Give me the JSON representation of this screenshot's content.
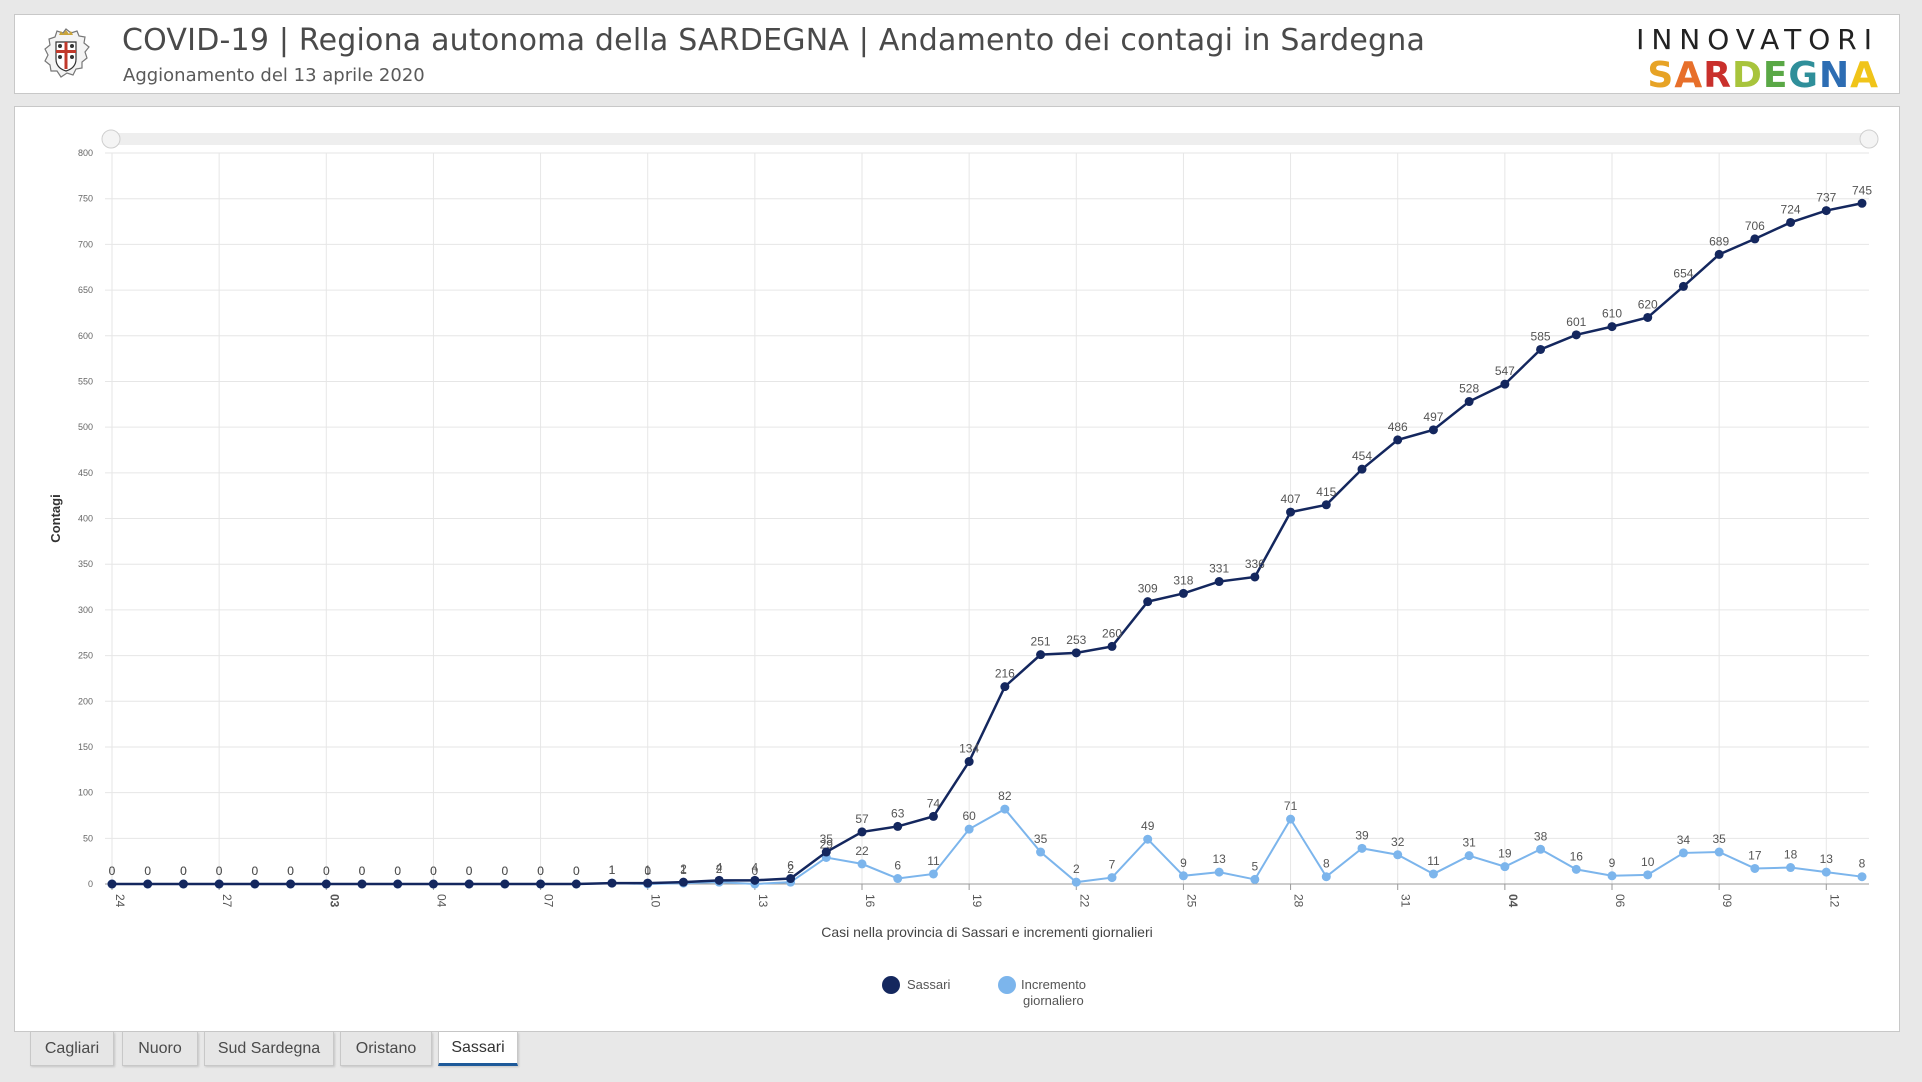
{
  "header": {
    "title": "COVID-19 | Regiona autonoma della SARDEGNA | Andamento dei contagi in Sardegna",
    "subtitle": "Aggionamento del 13 aprile 2020",
    "logo_top": "INNOVATORI",
    "logo_bottom_letters": [
      "S",
      "A",
      "R",
      "D",
      "E",
      "G",
      "N",
      "A"
    ],
    "logo_colors": [
      "#e7a325",
      "#e76f2a",
      "#c9302c",
      "#a8c43c",
      "#5aa846",
      "#2f8f9a",
      "#2d6db3",
      "#f0c419"
    ]
  },
  "tabs": [
    {
      "label": "Cagliari",
      "active": false
    },
    {
      "label": "Nuoro",
      "active": false
    },
    {
      "label": "Sud Sardegna",
      "active": false
    },
    {
      "label": "Oristano",
      "active": false
    },
    {
      "label": "Sassari",
      "active": true
    }
  ],
  "colors": {
    "series_total": "#14275e",
    "series_daily": "#7cb5ec",
    "grid": "#e6e6e6",
    "active_tab": "#1e5a9a"
  },
  "chart_data": {
    "type": "line",
    "title": "",
    "xlabel": "Casi nella provincia di Sassari e incrementi giornalieri",
    "ylabel": "Contagi",
    "ylim": [
      0,
      800
    ],
    "yticks": [
      0,
      50,
      100,
      150,
      200,
      250,
      300,
      350,
      400,
      450,
      500,
      550,
      600,
      650,
      700,
      750,
      800
    ],
    "xtick_labels": [
      {
        "day": 0,
        "label": "24",
        "bold": false
      },
      {
        "day": 3,
        "label": "27",
        "bold": false
      },
      {
        "day": 6,
        "label": "03",
        "bold": true
      },
      {
        "day": 9,
        "label": "04",
        "bold": false
      },
      {
        "day": 12,
        "label": "07",
        "bold": false
      },
      {
        "day": 15,
        "label": "10",
        "bold": false
      },
      {
        "day": 18,
        "label": "13",
        "bold": false
      },
      {
        "day": 21,
        "label": "16",
        "bold": false
      },
      {
        "day": 24,
        "label": "19",
        "bold": false
      },
      {
        "day": 27,
        "label": "22",
        "bold": false
      },
      {
        "day": 30,
        "label": "25",
        "bold": false
      },
      {
        "day": 33,
        "label": "28",
        "bold": false
      },
      {
        "day": 36,
        "label": "31",
        "bold": false
      },
      {
        "day": 39,
        "label": "04",
        "bold": true
      },
      {
        "day": 42,
        "label": "06",
        "bold": false
      },
      {
        "day": 45,
        "label": "09",
        "bold": false
      },
      {
        "day": 48,
        "label": "12",
        "bold": false
      }
    ],
    "grid": true,
    "legend_position": "bottom-center",
    "series": [
      {
        "name": "Sassari",
        "values": [
          0,
          0,
          0,
          0,
          0,
          0,
          0,
          0,
          0,
          0,
          0,
          0,
          0,
          0,
          1,
          1,
          2,
          4,
          4,
          6,
          35,
          57,
          63,
          74,
          134,
          216,
          251,
          253,
          260,
          309,
          318,
          331,
          336,
          407,
          415,
          454,
          486,
          497,
          528,
          547,
          585,
          601,
          610,
          620,
          654,
          689,
          706,
          724,
          737,
          745
        ]
      },
      {
        "name": "Incremento giornaliero",
        "values": [
          0,
          0,
          0,
          0,
          0,
          0,
          0,
          0,
          0,
          0,
          0,
          0,
          0,
          0,
          1,
          0,
          1,
          2,
          0,
          2,
          29,
          22,
          6,
          11,
          60,
          82,
          35,
          2,
          7,
          49,
          9,
          13,
          5,
          71,
          8,
          39,
          32,
          11,
          31,
          19,
          38,
          16,
          9,
          10,
          34,
          35,
          17,
          18,
          13,
          8
        ]
      }
    ]
  }
}
